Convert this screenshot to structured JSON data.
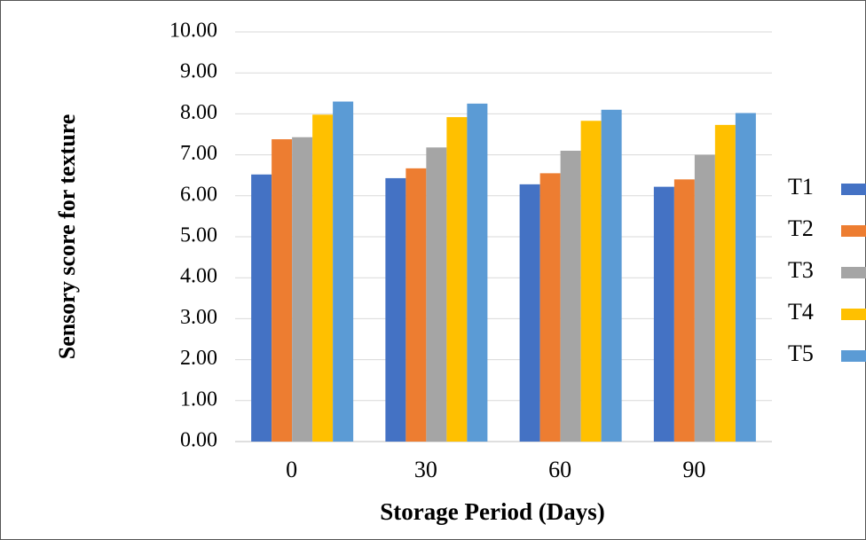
{
  "chart_data": {
    "type": "bar",
    "categories": [
      "0",
      "30",
      "60",
      "90"
    ],
    "xlabel": "Storage Period (Days)",
    "ylabel": "Sensory score for texture",
    "series": [
      {
        "name": "T1",
        "color": "#4472c4",
        "values": [
          6.52,
          6.43,
          6.28,
          6.22
        ]
      },
      {
        "name": "T2",
        "color": "#ed7d31",
        "values": [
          7.38,
          6.67,
          6.55,
          6.4
        ]
      },
      {
        "name": "T3",
        "color": "#a5a5a5",
        "values": [
          7.43,
          7.18,
          7.1,
          7.0
        ]
      },
      {
        "name": "T4",
        "color": "#ffc000",
        "values": [
          7.98,
          7.92,
          7.83,
          7.73
        ]
      },
      {
        "name": "T5",
        "color": "#5b9bd5",
        "values": [
          8.3,
          8.25,
          8.1,
          8.02
        ]
      }
    ],
    "ylim": [
      0,
      10
    ],
    "yticks": [
      {
        "value": 0,
        "label": "0.00"
      },
      {
        "value": 1,
        "label": "1.00"
      },
      {
        "value": 2,
        "label": "2.00"
      },
      {
        "value": 3,
        "label": "3.00"
      },
      {
        "value": 4,
        "label": "4.00"
      },
      {
        "value": 5,
        "label": "5.00"
      },
      {
        "value": 6,
        "label": "6.00"
      },
      {
        "value": 7,
        "label": "7.00"
      },
      {
        "value": 8,
        "label": "8.00"
      },
      {
        "value": 9,
        "label": "9.00"
      },
      {
        "value": 10,
        "label": "10.00"
      }
    ],
    "grid": true,
    "legend": "right"
  }
}
